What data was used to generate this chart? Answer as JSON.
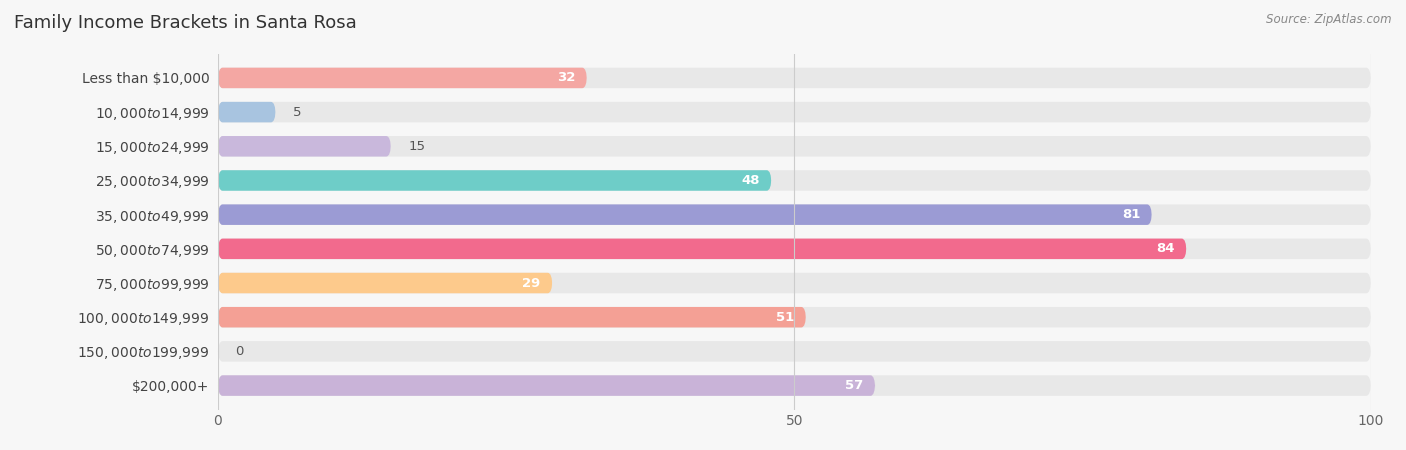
{
  "title": "Family Income Brackets in Santa Rosa",
  "source": "Source: ZipAtlas.com",
  "categories": [
    "Less than $10,000",
    "$10,000 to $14,999",
    "$15,000 to $24,999",
    "$25,000 to $34,999",
    "$35,000 to $49,999",
    "$50,000 to $74,999",
    "$75,000 to $99,999",
    "$100,000 to $149,999",
    "$150,000 to $199,999",
    "$200,000+"
  ],
  "values": [
    32,
    5,
    15,
    48,
    81,
    84,
    29,
    51,
    0,
    57
  ],
  "bar_colors": [
    "#F4A7A3",
    "#A8C4E0",
    "#C9B8DC",
    "#6ECDC8",
    "#9B9BD4",
    "#F26A8D",
    "#FDCA8C",
    "#F4A095",
    "#A8C4E0",
    "#C9B3D8"
  ],
  "xlim": [
    0,
    100
  ],
  "xticks": [
    0,
    50,
    100
  ],
  "background_color": "#f7f7f7",
  "bar_background_color": "#e8e8e8",
  "title_fontsize": 13,
  "label_fontsize": 10,
  "value_fontsize": 9.5,
  "bar_height": 0.6,
  "value_label_color_inside": "#ffffff",
  "value_label_color_outside": "#555555",
  "inside_threshold": 20
}
